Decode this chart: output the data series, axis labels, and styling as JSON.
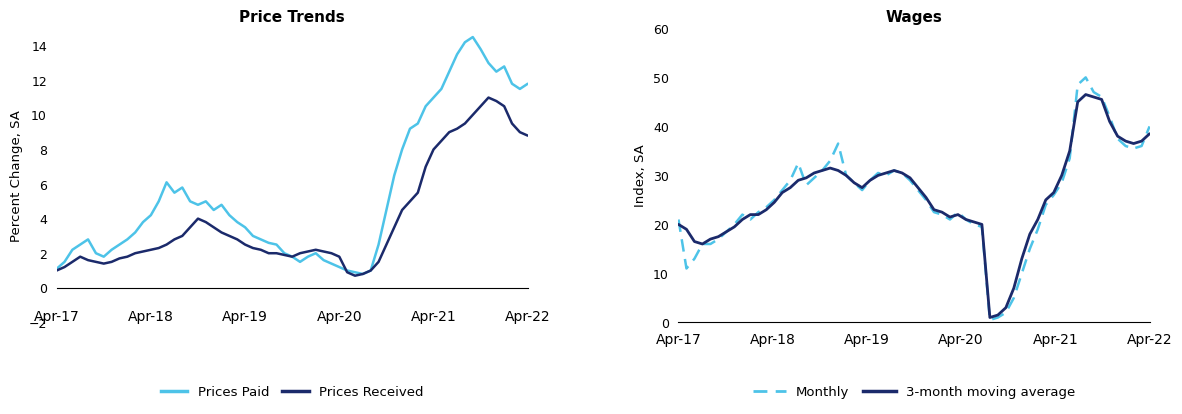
{
  "chart1_title": "Price Trends",
  "chart1_ylabel": "Percent Change, SA",
  "chart1_ylim": [
    -2,
    15
  ],
  "chart1_yticks": [
    -2,
    0,
    2,
    4,
    6,
    8,
    10,
    12,
    14
  ],
  "chart1_xtick_labels": [
    "Apr-17",
    "Apr-18",
    "Apr-19",
    "Apr-20",
    "Apr-21",
    "Apr-22"
  ],
  "prices_paid": [
    1.1,
    1.5,
    2.2,
    2.5,
    2.8,
    2.0,
    1.8,
    2.2,
    2.5,
    2.8,
    3.2,
    3.8,
    4.2,
    5.0,
    6.1,
    5.5,
    5.8,
    5.0,
    4.8,
    5.0,
    4.5,
    4.8,
    4.2,
    3.8,
    3.5,
    3.0,
    2.8,
    2.6,
    2.5,
    2.0,
    1.8,
    1.5,
    1.8,
    2.0,
    1.6,
    1.4,
    1.2,
    1.0,
    0.9,
    0.8,
    1.0,
    2.5,
    4.5,
    6.5,
    8.0,
    9.2,
    9.5,
    10.5,
    11.0,
    11.5,
    12.5,
    13.5,
    14.2,
    14.5,
    13.8,
    13.0,
    12.5,
    12.8,
    11.8,
    11.5,
    11.8
  ],
  "prices_received": [
    1.0,
    1.2,
    1.5,
    1.8,
    1.6,
    1.5,
    1.4,
    1.5,
    1.7,
    1.8,
    2.0,
    2.1,
    2.2,
    2.3,
    2.5,
    2.8,
    3.0,
    3.5,
    4.0,
    3.8,
    3.5,
    3.2,
    3.0,
    2.8,
    2.5,
    2.3,
    2.2,
    2.0,
    2.0,
    1.9,
    1.8,
    2.0,
    2.1,
    2.2,
    2.1,
    2.0,
    1.8,
    0.9,
    0.7,
    0.8,
    1.0,
    1.5,
    2.5,
    3.5,
    4.5,
    5.0,
    5.5,
    7.0,
    8.0,
    8.5,
    9.0,
    9.2,
    9.5,
    10.0,
    10.5,
    11.0,
    10.8,
    10.5,
    9.5,
    9.0,
    8.8
  ],
  "chart2_title": "Wages",
  "chart2_ylabel": "Index, SA",
  "chart2_ylim": [
    0,
    60
  ],
  "chart2_yticks": [
    0,
    10,
    20,
    30,
    40,
    50,
    60
  ],
  "chart2_xtick_labels": [
    "Apr-17",
    "Apr-18",
    "Apr-19",
    "Apr-20",
    "Apr-21",
    "Apr-22"
  ],
  "wages_monthly": [
    21.0,
    11.0,
    13.0,
    16.0,
    16.0,
    17.0,
    18.5,
    20.0,
    22.0,
    21.0,
    22.5,
    23.5,
    25.0,
    27.0,
    29.0,
    32.5,
    28.0,
    29.5,
    31.0,
    33.0,
    36.5,
    30.0,
    28.5,
    27.0,
    29.0,
    30.5,
    30.0,
    31.0,
    30.5,
    29.0,
    27.0,
    25.0,
    22.5,
    22.0,
    21.0,
    22.5,
    21.0,
    20.0,
    19.5,
    0.5,
    1.0,
    2.0,
    5.0,
    10.0,
    15.0,
    19.0,
    24.0,
    26.0,
    28.5,
    33.5,
    48.5,
    50.0,
    47.0,
    46.0,
    42.0,
    37.5,
    36.0,
    35.5,
    36.0,
    40.0
  ],
  "wages_3month": [
    20.0,
    19.0,
    16.5,
    16.0,
    17.0,
    17.5,
    18.5,
    19.5,
    21.0,
    22.0,
    22.0,
    23.0,
    24.5,
    26.5,
    27.5,
    29.0,
    29.5,
    30.5,
    31.0,
    31.5,
    31.0,
    30.0,
    28.5,
    27.5,
    29.0,
    30.0,
    30.5,
    31.0,
    30.5,
    29.5,
    27.5,
    25.5,
    23.0,
    22.5,
    21.5,
    22.0,
    21.0,
    20.5,
    20.0,
    1.0,
    1.5,
    3.0,
    7.0,
    13.0,
    18.0,
    21.0,
    25.0,
    26.5,
    30.0,
    35.0,
    45.0,
    46.5,
    46.0,
    45.5,
    41.0,
    38.0,
    37.0,
    36.5,
    37.0,
    38.5
  ],
  "color_prices_paid": "#4DC3E8",
  "color_prices_received": "#1B2A6B",
  "color_monthly": "#4DC3E8",
  "color_3month": "#1B2A6B",
  "bg_color": "#ffffff",
  "legend_fontsize": 9.5,
  "title_fontsize": 11,
  "tick_fontsize": 9,
  "ylabel_fontsize": 9.5
}
